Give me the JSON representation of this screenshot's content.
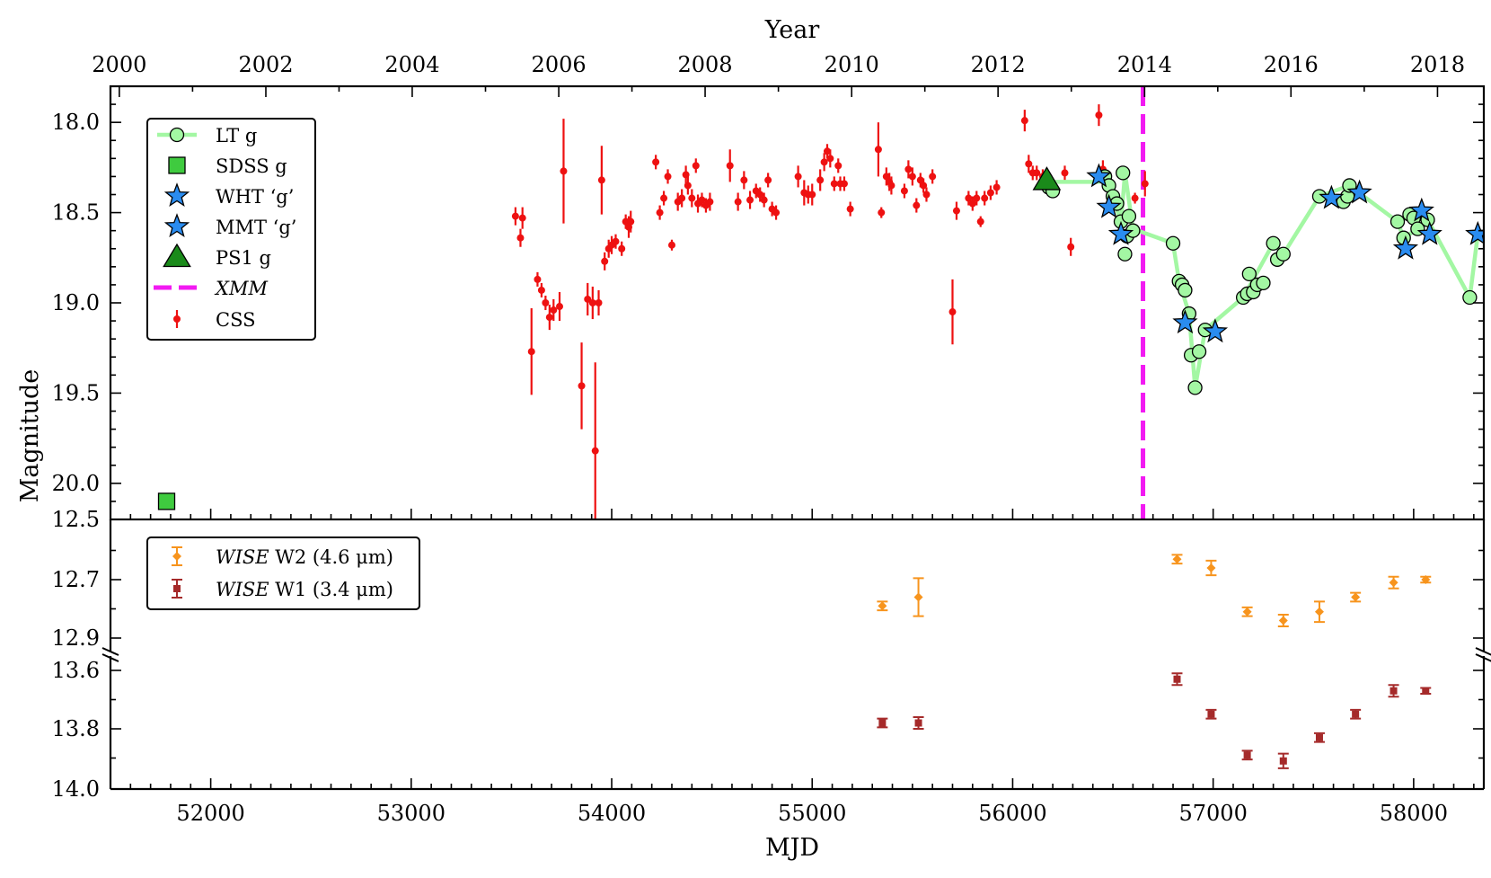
{
  "chart_data": {
    "type": "scatter",
    "xlabel": "MJD",
    "top_xlabel": "Year",
    "ylabel": "Magnitude",
    "xlim": [
      51500,
      58350
    ],
    "x_ticks": [
      52000,
      53000,
      54000,
      55000,
      56000,
      57000,
      58000
    ],
    "year_ticks": [
      {
        "label": "2000",
        "mjd": 51544
      },
      {
        "label": "2002",
        "mjd": 52275
      },
      {
        "label": "2004",
        "mjd": 53005
      },
      {
        "label": "2006",
        "mjd": 53736
      },
      {
        "label": "2008",
        "mjd": 54466
      },
      {
        "label": "2010",
        "mjd": 55197
      },
      {
        "label": "2012",
        "mjd": 55927
      },
      {
        "label": "2014",
        "mjd": 56658
      },
      {
        "label": "2016",
        "mjd": 57388
      },
      {
        "label": "2018",
        "mjd": 58119
      }
    ],
    "panels": {
      "optical": {
        "ylim": [
          20.2,
          17.8
        ],
        "y_ticks": [
          "18.0",
          "18.5",
          "19.0",
          "19.5",
          "20.0"
        ],
        "xmm_mjd": 56650,
        "css": [
          [
            53520,
            18.52,
            0.05
          ],
          [
            53545,
            18.64,
            0.05
          ],
          [
            53555,
            18.53,
            0.06
          ],
          [
            53600,
            19.27,
            0.24
          ],
          [
            53630,
            18.87,
            0.04
          ],
          [
            53650,
            18.93,
            0.04
          ],
          [
            53670,
            19.0,
            0.04
          ],
          [
            53690,
            19.08,
            0.07
          ],
          [
            53710,
            19.04,
            0.06
          ],
          [
            53740,
            19.02,
            0.08
          ],
          [
            53760,
            18.27,
            0.29
          ],
          [
            53850,
            19.46,
            0.24
          ],
          [
            53880,
            18.98,
            0.09
          ],
          [
            53905,
            19.0,
            0.09
          ],
          [
            53918,
            19.82,
            0.49
          ],
          [
            53935,
            19.0,
            0.07
          ],
          [
            53950,
            18.32,
            0.19
          ],
          [
            53965,
            18.77,
            0.05
          ],
          [
            53985,
            18.7,
            0.05
          ],
          [
            54000,
            18.68,
            0.05
          ],
          [
            54020,
            18.66,
            0.04
          ],
          [
            54050,
            18.7,
            0.04
          ],
          [
            54070,
            18.55,
            0.04
          ],
          [
            54085,
            18.58,
            0.06
          ],
          [
            54095,
            18.55,
            0.06
          ],
          [
            54220,
            18.22,
            0.04
          ],
          [
            54240,
            18.5,
            0.04
          ],
          [
            54260,
            18.42,
            0.04
          ],
          [
            54280,
            18.3,
            0.04
          ],
          [
            54300,
            18.68,
            0.03
          ],
          [
            54330,
            18.44,
            0.05
          ],
          [
            54350,
            18.42,
            0.05
          ],
          [
            54370,
            18.29,
            0.05
          ],
          [
            54380,
            18.35,
            0.05
          ],
          [
            54400,
            18.42,
            0.05
          ],
          [
            54420,
            18.24,
            0.04
          ],
          [
            54430,
            18.45,
            0.05
          ],
          [
            54450,
            18.43,
            0.04
          ],
          [
            54470,
            18.46,
            0.04
          ],
          [
            54490,
            18.44,
            0.05
          ],
          [
            54590,
            18.24,
            0.09
          ],
          [
            54630,
            18.44,
            0.05
          ],
          [
            54660,
            18.32,
            0.05
          ],
          [
            54690,
            18.43,
            0.05
          ],
          [
            54720,
            18.38,
            0.04
          ],
          [
            54740,
            18.4,
            0.04
          ],
          [
            54760,
            18.43,
            0.04
          ],
          [
            54780,
            18.32,
            0.04
          ],
          [
            54800,
            18.48,
            0.04
          ],
          [
            54820,
            18.5,
            0.04
          ],
          [
            54930,
            18.3,
            0.06
          ],
          [
            54960,
            18.39,
            0.07
          ],
          [
            54980,
            18.4,
            0.05
          ],
          [
            55000,
            18.4,
            0.06
          ],
          [
            55040,
            18.32,
            0.06
          ],
          [
            55060,
            18.22,
            0.05
          ],
          [
            55075,
            18.16,
            0.04
          ],
          [
            55090,
            18.2,
            0.05
          ],
          [
            55110,
            18.34,
            0.04
          ],
          [
            55130,
            18.24,
            0.04
          ],
          [
            55140,
            18.34,
            0.04
          ],
          [
            55160,
            18.34,
            0.04
          ],
          [
            55190,
            18.48,
            0.04
          ],
          [
            55330,
            18.15,
            0.15
          ],
          [
            55345,
            18.5,
            0.03
          ],
          [
            55370,
            18.3,
            0.05
          ],
          [
            55385,
            18.33,
            0.05
          ],
          [
            55395,
            18.35,
            0.05
          ],
          [
            55460,
            18.38,
            0.04
          ],
          [
            55480,
            18.26,
            0.05
          ],
          [
            55500,
            18.3,
            0.05
          ],
          [
            55520,
            18.46,
            0.04
          ],
          [
            55540,
            18.32,
            0.04
          ],
          [
            55555,
            18.35,
            0.04
          ],
          [
            55570,
            18.4,
            0.04
          ],
          [
            55600,
            18.3,
            0.04
          ],
          [
            55700,
            19.05,
            0.18
          ],
          [
            55720,
            18.49,
            0.05
          ],
          [
            55780,
            18.42,
            0.04
          ],
          [
            55800,
            18.45,
            0.04
          ],
          [
            55820,
            18.42,
            0.04
          ],
          [
            55840,
            18.55,
            0.03
          ],
          [
            55860,
            18.42,
            0.04
          ],
          [
            55890,
            18.39,
            0.04
          ],
          [
            55920,
            18.36,
            0.04
          ],
          [
            56060,
            17.99,
            0.06
          ],
          [
            56080,
            18.23,
            0.05
          ],
          [
            56100,
            18.28,
            0.04
          ],
          [
            56120,
            18.28,
            0.04
          ],
          [
            56150,
            18.3,
            0.04
          ],
          [
            56260,
            18.28,
            0.04
          ],
          [
            56290,
            18.69,
            0.05
          ],
          [
            56430,
            17.96,
            0.06
          ],
          [
            56450,
            18.26,
            0.05
          ],
          [
            56610,
            18.42,
            0.03
          ],
          [
            56660,
            18.34,
            0.07
          ]
        ],
        "lt_g": [
          [
            56180,
            18.36
          ],
          [
            56200,
            18.38
          ],
          [
            56460,
            18.3
          ],
          [
            56480,
            18.35
          ],
          [
            56500,
            18.41
          ],
          [
            56520,
            18.45
          ],
          [
            56540,
            18.55
          ],
          [
            56550,
            18.28
          ],
          [
            56560,
            18.73
          ],
          [
            56570,
            18.63
          ],
          [
            56580,
            18.52
          ],
          [
            56600,
            18.6
          ],
          [
            56800,
            18.67
          ],
          [
            56830,
            18.88
          ],
          [
            56845,
            18.9
          ],
          [
            56860,
            18.93
          ],
          [
            56880,
            19.06
          ],
          [
            56890,
            19.29
          ],
          [
            56910,
            19.47
          ],
          [
            56930,
            19.27
          ],
          [
            56960,
            19.15
          ],
          [
            57150,
            18.97
          ],
          [
            57170,
            18.95
          ],
          [
            57180,
            18.84
          ],
          [
            57200,
            18.94
          ],
          [
            57220,
            18.9
          ],
          [
            57250,
            18.89
          ],
          [
            57300,
            18.67
          ],
          [
            57320,
            18.76
          ],
          [
            57350,
            18.73
          ],
          [
            57530,
            18.41
          ],
          [
            57650,
            18.44
          ],
          [
            57670,
            18.41
          ],
          [
            57680,
            18.35
          ],
          [
            57920,
            18.55
          ],
          [
            57950,
            18.64
          ],
          [
            57980,
            18.51
          ],
          [
            58000,
            18.53
          ],
          [
            58020,
            18.59
          ],
          [
            58070,
            18.54
          ],
          [
            58280,
            18.97
          ]
        ],
        "lt_line": [
          [
            56180,
            18.33
          ],
          [
            56200,
            18.33
          ],
          [
            56430,
            18.33
          ],
          [
            56460,
            18.3
          ],
          [
            56500,
            18.4
          ],
          [
            56540,
            18.56
          ],
          [
            56560,
            18.28
          ],
          [
            56600,
            18.59
          ],
          [
            56800,
            18.67
          ],
          [
            56830,
            18.88
          ],
          [
            56880,
            19.06
          ],
          [
            56910,
            19.47
          ],
          [
            56960,
            19.15
          ],
          [
            57150,
            18.97
          ],
          [
            57300,
            18.67
          ],
          [
            57350,
            18.73
          ],
          [
            57530,
            18.41
          ],
          [
            57680,
            18.35
          ],
          [
            57920,
            18.55
          ],
          [
            57950,
            18.64
          ],
          [
            58020,
            18.59
          ],
          [
            58070,
            18.54
          ],
          [
            58280,
            18.97
          ],
          [
            58320,
            18.62
          ]
        ],
        "sdss_g": [
          [
            51780,
            20.1
          ]
        ],
        "ps1_g": [
          [
            56170,
            18.32
          ]
        ],
        "wht_g": [
          [
            56430,
            18.3
          ],
          [
            56480,
            18.47
          ],
          [
            56540,
            18.62
          ],
          [
            56860,
            19.11
          ],
          [
            57010,
            19.16
          ],
          [
            57590,
            18.42
          ],
          [
            57730,
            18.39
          ]
        ],
        "mmt_g": [
          [
            57960,
            18.7
          ],
          [
            58040,
            18.49
          ],
          [
            58080,
            18.62
          ],
          [
            58320,
            18.62
          ]
        ]
      },
      "wise_w2": {
        "ylim": [
          12.5,
          12.95
        ],
        "y_ticks": [
          "12.5",
          "12.7",
          "12.9"
        ],
        "points": [
          [
            55350,
            12.79,
            0.015
          ],
          [
            55530,
            12.76,
            0.065
          ],
          [
            56820,
            12.63,
            0.015
          ],
          [
            56990,
            12.66,
            0.025
          ],
          [
            57170,
            12.81,
            0.015
          ],
          [
            57350,
            12.84,
            0.02
          ],
          [
            57530,
            12.81,
            0.035
          ],
          [
            57710,
            12.76,
            0.015
          ],
          [
            57900,
            12.71,
            0.02
          ],
          [
            58060,
            12.7,
            0.01
          ]
        ]
      },
      "wise_w1": {
        "ylim": [
          13.55,
          14.0
        ],
        "y_ticks": [
          "13.6",
          "13.8",
          "14.0"
        ],
        "points": [
          [
            55350,
            13.78,
            0.015
          ],
          [
            55530,
            13.78,
            0.02
          ],
          [
            56820,
            13.63,
            0.02
          ],
          [
            56990,
            13.75,
            0.015
          ],
          [
            57170,
            13.89,
            0.015
          ],
          [
            57350,
            13.91,
            0.025
          ],
          [
            57530,
            13.83,
            0.015
          ],
          [
            57710,
            13.75,
            0.015
          ],
          [
            57900,
            13.67,
            0.02
          ],
          [
            58060,
            13.67,
            0.01
          ]
        ]
      }
    },
    "legend_optical": [
      {
        "key": "lt",
        "label": "LT g",
        "color": "#a3f7a3"
      },
      {
        "key": "sdss",
        "label": "SDSS g",
        "color": "#3fcb3f"
      },
      {
        "key": "wht",
        "label": "WHT ‘g’",
        "color": "#2a8cf0"
      },
      {
        "key": "mmt",
        "label": "MMT ‘g’",
        "color": "#2a8cf0"
      },
      {
        "key": "ps1",
        "label": "PS1 g",
        "color": "#1a8a1a"
      },
      {
        "key": "xmm",
        "label": "XMM",
        "color": "#f21af2"
      },
      {
        "key": "css",
        "label": "CSS",
        "color": "#ee1111"
      }
    ],
    "legend_wise": [
      {
        "key": "w2",
        "label_italic": "WISE",
        "label_rest": " W2 (4.6 μm)",
        "color": "#f7941d"
      },
      {
        "key": "w1",
        "label_italic": "WISE",
        "label_rest": " W1 (3.4 μm)",
        "color": "#a52a2a"
      }
    ]
  }
}
